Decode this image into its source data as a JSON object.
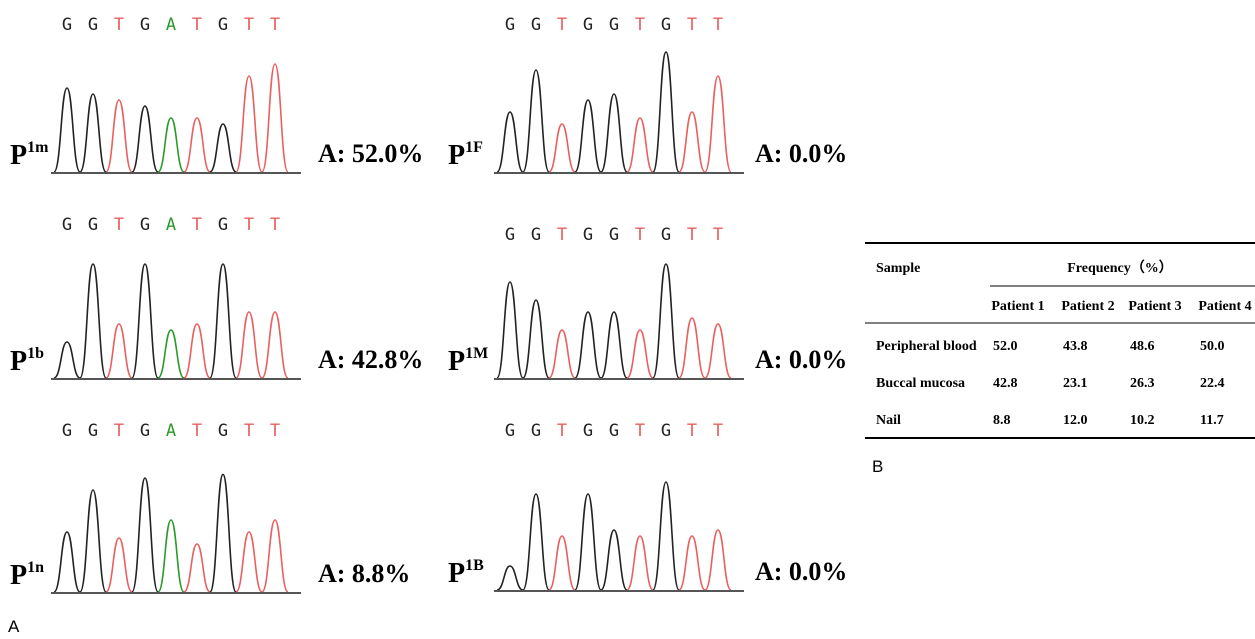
{
  "panels": [
    {
      "bases": [
        "G",
        "G",
        "T",
        "G",
        "A",
        "T",
        "G",
        "T",
        "T"
      ],
      "label": "P",
      "label_sup": "1m",
      "allele": "A: 52.0%"
    },
    {
      "bases": [
        "G",
        "G",
        "T",
        "G",
        "A",
        "T",
        "G",
        "T",
        "T"
      ],
      "label": "P",
      "label_sup": "1b",
      "allele": "A: 42.8%"
    },
    {
      "bases": [
        "G",
        "G",
        "T",
        "G",
        "A",
        "T",
        "G",
        "T",
        "T"
      ],
      "label": "P",
      "label_sup": "1n",
      "allele": "A: 8.8%"
    },
    {
      "bases": [
        "G",
        "G",
        "T",
        "G",
        "G",
        "T",
        "G",
        "T",
        "T"
      ],
      "label": "P",
      "label_sup": "1F",
      "allele": "A: 0.0%"
    },
    {
      "bases": [
        "G",
        "G",
        "T",
        "G",
        "G",
        "T",
        "G",
        "T",
        "T"
      ],
      "label": "P",
      "label_sup": "1M",
      "allele": "A: 0.0%"
    },
    {
      "bases": [
        "G",
        "G",
        "T",
        "G",
        "G",
        "T",
        "G",
        "T",
        "T"
      ],
      "label": "P",
      "label_sup": "1B",
      "allele": "A: 0.0%"
    }
  ],
  "table": {
    "header": {
      "sample": "Sample",
      "group": "Frequency（%）"
    },
    "columns": [
      "Patient 1",
      "Patient 2",
      "Patient 3",
      "Patient 4"
    ],
    "rows": [
      [
        "Peripheral blood",
        "52.0",
        "43.8",
        "48.6",
        "50.0"
      ],
      [
        "Buccal mucosa",
        "42.8",
        "23.1",
        "26.3",
        "22.4"
      ],
      [
        "Nail",
        "8.8",
        "12.0",
        "10.2",
        "11.7"
      ]
    ]
  },
  "labels": {
    "a": "A",
    "b": "B"
  }
}
